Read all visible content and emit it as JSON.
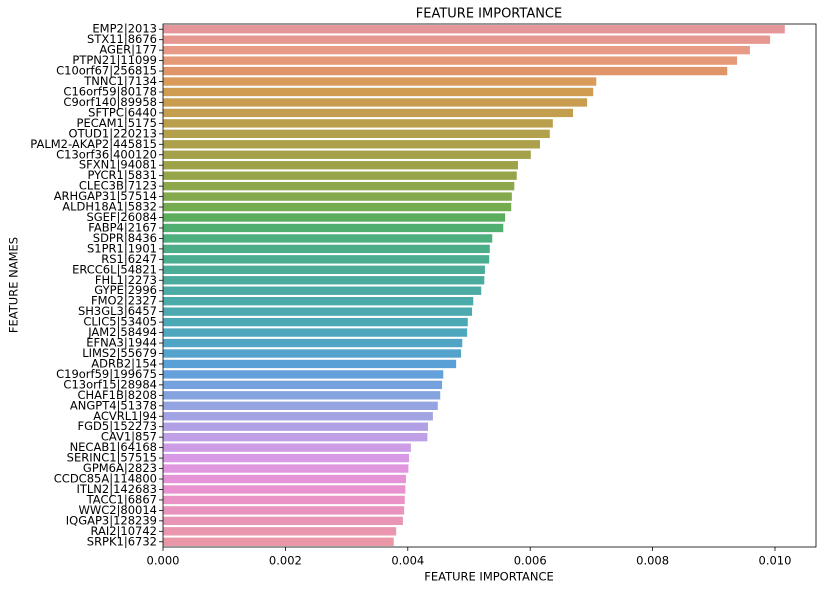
{
  "chart_data": {
    "type": "barh",
    "title": "FEATURE IMPORTANCE",
    "x_label": "FEATURE IMPORTANCE",
    "y_label": "FEATURE NAMES",
    "categories": [
      "EMP2|2013",
      "STX11|8676",
      "AGER|177",
      "PTPN21|11099",
      "C10orf67|256815",
      "TNNC1|7134",
      "C16orf59|80178",
      "C9orf140|89958",
      "SFTPC|6440",
      "PECAM1|5175",
      "OTUD1|220213",
      "PALM2-AKAP2|445815",
      "C13orf36|400120",
      "SFXN1|94081",
      "PYCR1|5831",
      "CLEC3B|7123",
      "ARHGAP31|57514",
      "ALDH18A1|5832",
      "SGEF|26084",
      "FABP4|2167",
      "SDPR|8436",
      "S1PR1|1901",
      "RS1|6247",
      "ERCC6L|54821",
      "FHL1|2273",
      "GYPE|2996",
      "FMO2|2327",
      "SH3GL3|6457",
      "CLIC5|53405",
      "JAM2|58494",
      "EFNA3|1944",
      "LIMS2|55679",
      "ADRB2|154",
      "C19orf59|199675",
      "C13orf15|28984",
      "CHAF1B|8208",
      "ANGPT4|51378",
      "ACVRL1|94",
      "FGD5|152273",
      "CAV1|857",
      "NECAB1|64168",
      "SERINC1|57515",
      "GPM6A|2823",
      "CCDC85A|114800",
      "ITLN2|142683",
      "TACC1|6867",
      "WWC2|80014",
      "IQGAP3|128239",
      "RAI2|10742",
      "SRPK1|6732"
    ],
    "values": [
      0.01016,
      0.00992,
      0.00959,
      0.00938,
      0.00922,
      0.00708,
      0.00703,
      0.00693,
      0.0067,
      0.00637,
      0.00632,
      0.00616,
      0.00601,
      0.0058,
      0.00578,
      0.00574,
      0.0057,
      0.00569,
      0.00559,
      0.00556,
      0.00538,
      0.00534,
      0.00533,
      0.00526,
      0.00525,
      0.0052,
      0.00507,
      0.00505,
      0.00498,
      0.00497,
      0.00489,
      0.00487,
      0.00479,
      0.00458,
      0.00456,
      0.00453,
      0.00449,
      0.00441,
      0.00433,
      0.00432,
      0.00405,
      0.00402,
      0.00401,
      0.00397,
      0.00396,
      0.00395,
      0.00394,
      0.00392,
      0.00381,
      0.00377
    ],
    "colors": [
      "#e5969a",
      "#e69890",
      "#e79a86",
      "#e59a78",
      "#e09568",
      "#d99a5a",
      "#d09c52",
      "#c99d50",
      "#c29e4e",
      "#ba9f4c",
      "#b3a04b",
      "#aca04a",
      "#a5a14a",
      "#9ea34a",
      "#96a54a",
      "#8da74b",
      "#84a94c",
      "#76ac50",
      "#5aae5e",
      "#4fae70",
      "#4dae7e",
      "#4cad88",
      "#4bad90",
      "#4bac97",
      "#4bac9e",
      "#4baba4",
      "#4baaaa",
      "#4ca9b0",
      "#4da8b6",
      "#4ea7bd",
      "#50a5c5",
      "#53a3cd",
      "#58a0d6",
      "#64a0dc",
      "#75a2de",
      "#84a3df",
      "#93a4e1",
      "#a2a3e3",
      "#b1a1e4",
      "#bf9fe5",
      "#cc9de5",
      "#d89ae4",
      "#e196e0",
      "#e694d8",
      "#e892cf",
      "#e993c6",
      "#e994be",
      "#e995b6",
      "#e996ae",
      "#e997a6"
    ],
    "xlim": [
      0,
      0.01067
    ],
    "xticks": [
      {
        "value": 0,
        "label": "0.000"
      },
      {
        "value": 0.002,
        "label": "0.002"
      },
      {
        "value": 0.004,
        "label": "0.004"
      },
      {
        "value": 0.006,
        "label": "0.006"
      },
      {
        "value": 0.008,
        "label": "0.008"
      },
      {
        "value": 0.01,
        "label": "0.010"
      }
    ]
  }
}
